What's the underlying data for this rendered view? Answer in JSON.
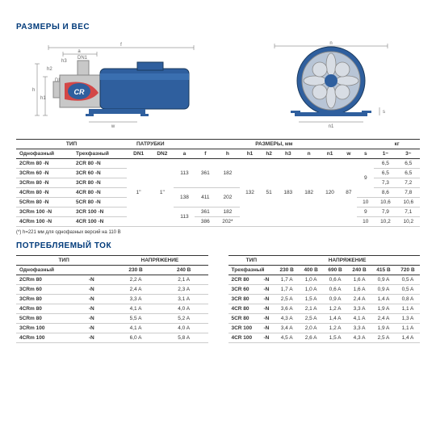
{
  "headings": {
    "dims": "РАЗМЕРЫ И ВЕС",
    "current": "ПОТРЕБЛЯЕМЫЙ ТОК"
  },
  "dim_table": {
    "group_headers": [
      "ТИП",
      "ПАТРУБКИ",
      "РАЗМЕРЫ, мм",
      "кг"
    ],
    "headers": [
      "Однофазный",
      "Трехфазный",
      "DN1",
      "DN2",
      "a",
      "f",
      "h",
      "h1",
      "h2",
      "h3",
      "n",
      "n1",
      "w",
      "s",
      "1~",
      "3~"
    ],
    "rows": [
      {
        "m": "2CRm 80",
        "t": "2CR 80",
        "suffix": "-N",
        "a": "113",
        "f": "361",
        "h": "182",
        "h1": "132",
        "h2": "51",
        "h3": "183",
        "n": "182",
        "n1": "120",
        "w": "87",
        "s": "9",
        "dn1": "1\"",
        "dn2": "1\"",
        "kg1": "6,5",
        "kg3": "6,5"
      },
      {
        "m": "3CRm 60",
        "t": "3CR 60",
        "suffix": "-N",
        "a": "113",
        "f": "361",
        "h": "182",
        "kg1": "6,5",
        "kg3": "6,5"
      },
      {
        "m": "3CRm 80",
        "t": "3CR 80",
        "suffix": "-N",
        "a": "113",
        "f": "361",
        "h": "182",
        "kg1": "7,3",
        "kg3": "7,2"
      },
      {
        "m": "4CRm 80",
        "t": "4CR 80",
        "suffix": "-N",
        "a": "138",
        "f": "411",
        "h": "202",
        "kg1": "8,6",
        "kg3": "7,8"
      },
      {
        "m": "5CRm 80",
        "t": "5CR 80",
        "suffix": "-N",
        "a": "138",
        "f": "411",
        "h": "202",
        "s": "10",
        "kg1": "10,6",
        "kg3": "10,6"
      },
      {
        "m": "3CRm 100",
        "t": "3CR 100",
        "suffix": "-N",
        "a": "113",
        "f": "361",
        "h": "182",
        "s": "9",
        "kg1": "7,9",
        "kg3": "7,1"
      },
      {
        "m": "4CRm 100",
        "t": "4CR 100",
        "suffix": "-N",
        "a": "113",
        "f": "386",
        "h": "202*",
        "s": "10",
        "kg1": "10,2",
        "kg3": "10,2"
      }
    ],
    "footnote": "(*) h=221 мм для однофазных версий на 110 В"
  },
  "current_single": {
    "group": [
      "ТИП",
      "НАПРЯЖЕНИЕ"
    ],
    "headers": [
      "Однофазный",
      "230 В",
      "240 В"
    ],
    "rows": [
      [
        "2CRm 80",
        "-N",
        "2,2 A",
        "2,1 A"
      ],
      [
        "3CRm 60",
        "-N",
        "2,4 A",
        "2,3 A"
      ],
      [
        "3CRm 80",
        "-N",
        "3,3 A",
        "3,1 A"
      ],
      [
        "4CRm 80",
        "-N",
        "4,1 A",
        "4,0 A"
      ],
      [
        "5CRm 80",
        "-N",
        "5,5 A",
        "5,2 A"
      ],
      [
        "3CRm 100",
        "-N",
        "4,1 A",
        "4,0 A"
      ],
      [
        "4CRm 100",
        "-N",
        "6,0 A",
        "5,8 A"
      ]
    ]
  },
  "current_three": {
    "group": [
      "ТИП",
      "НАПРЯЖЕНИЕ"
    ],
    "headers": [
      "Трехфазный",
      "230 В",
      "400 В",
      "690 В",
      "240 В",
      "415 В",
      "720 В"
    ],
    "rows": [
      [
        "2CR 80",
        "-N",
        "1,7 A",
        "1,0 A",
        "0,6 A",
        "1,6 A",
        "0,9 A",
        "0,5 A"
      ],
      [
        "3CR 60",
        "-N",
        "1,7 A",
        "1,0 A",
        "0,6 A",
        "1,6 A",
        "0,9 A",
        "0,5 A"
      ],
      [
        "3CR 80",
        "-N",
        "2,5 A",
        "1,5 A",
        "0,9 A",
        "2,4 A",
        "1,4 A",
        "0,8 A"
      ],
      [
        "4CR 80",
        "-N",
        "3,6 A",
        "2,1 A",
        "1,2 A",
        "3,3 A",
        "1,9 A",
        "1,1 A"
      ],
      [
        "5CR 80",
        "-N",
        "4,3 A",
        "2,5 A",
        "1,4 A",
        "4,1 A",
        "2,4 A",
        "1,3 A"
      ],
      [
        "3CR 100",
        "-N",
        "3,4 A",
        "2,0 A",
        "1,2 A",
        "3,3 A",
        "1,9 A",
        "1,1 A"
      ],
      [
        "4CR 100",
        "-N",
        "4,5 A",
        "2,6 A",
        "1,5 A",
        "4,3 A",
        "2,5 A",
        "1,4 A"
      ]
    ]
  },
  "colors": {
    "heading": "#003a7a",
    "pump_body": "#2f5f9e",
    "pump_light": "#b8c5d6",
    "pump_red": "#d43838"
  }
}
